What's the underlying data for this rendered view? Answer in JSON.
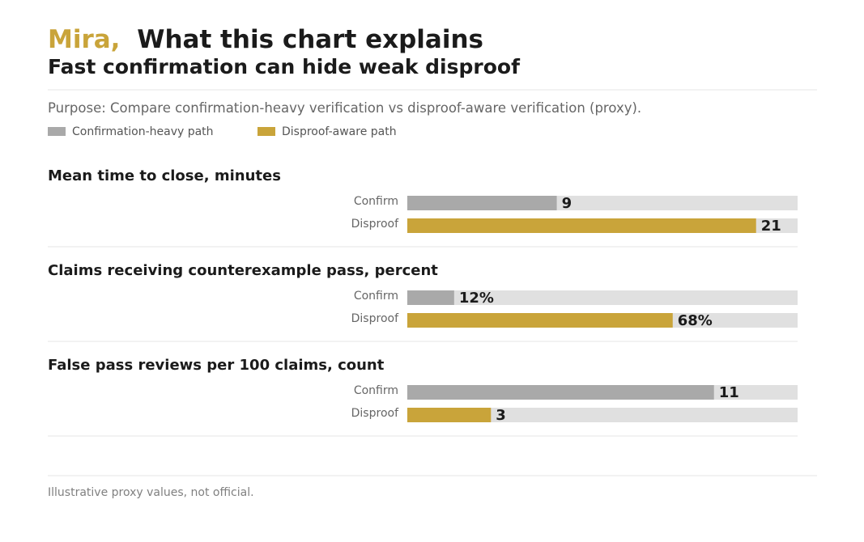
{
  "header": {
    "brand": "Mira,",
    "title": "What this chart explains",
    "subtitle": "Fast confirmation can hide weak disproof",
    "purpose": "Purpose: Compare confirmation-heavy verification vs disproof-aware verification (proxy)."
  },
  "legend": [
    {
      "label": "Confirmation-heavy path",
      "color": "#a9a9a9"
    },
    {
      "label": "Disproof-aware path",
      "color": "#c9a43a"
    }
  ],
  "footer": {
    "note": "Illustrative proxy values, not official."
  },
  "colors": {
    "brand": "#c9a43a",
    "confirm": "#a9a9a9",
    "disproof": "#c9a43a",
    "track": "#e0e0e0",
    "divider": "#e4e4e4",
    "title_text": "#1b1b1b",
    "muted_text": "#666666"
  },
  "chart_data": {
    "type": "bar",
    "orientation": "horizontal",
    "legend_position": "top-left",
    "series_names": [
      "Confirmation-heavy path",
      "Disproof-aware path"
    ],
    "panels": [
      {
        "title": "Mean time to close, minutes",
        "categories": [
          "Confirm",
          "Disproof"
        ],
        "values": [
          9,
          21
        ],
        "value_labels": [
          "9",
          "21"
        ],
        "max": 23.5
      },
      {
        "title": "Claims receiving counterexample pass, percent",
        "categories": [
          "Confirm",
          "Disproof"
        ],
        "values": [
          12,
          68
        ],
        "value_labels": [
          "12%",
          "68%"
        ],
        "max": 100
      },
      {
        "title": "False pass reviews per 100 claims, count",
        "categories": [
          "Confirm",
          "Disproof"
        ],
        "values": [
          11,
          3
        ],
        "value_labels": [
          "11",
          "3"
        ],
        "max": 14
      }
    ]
  }
}
